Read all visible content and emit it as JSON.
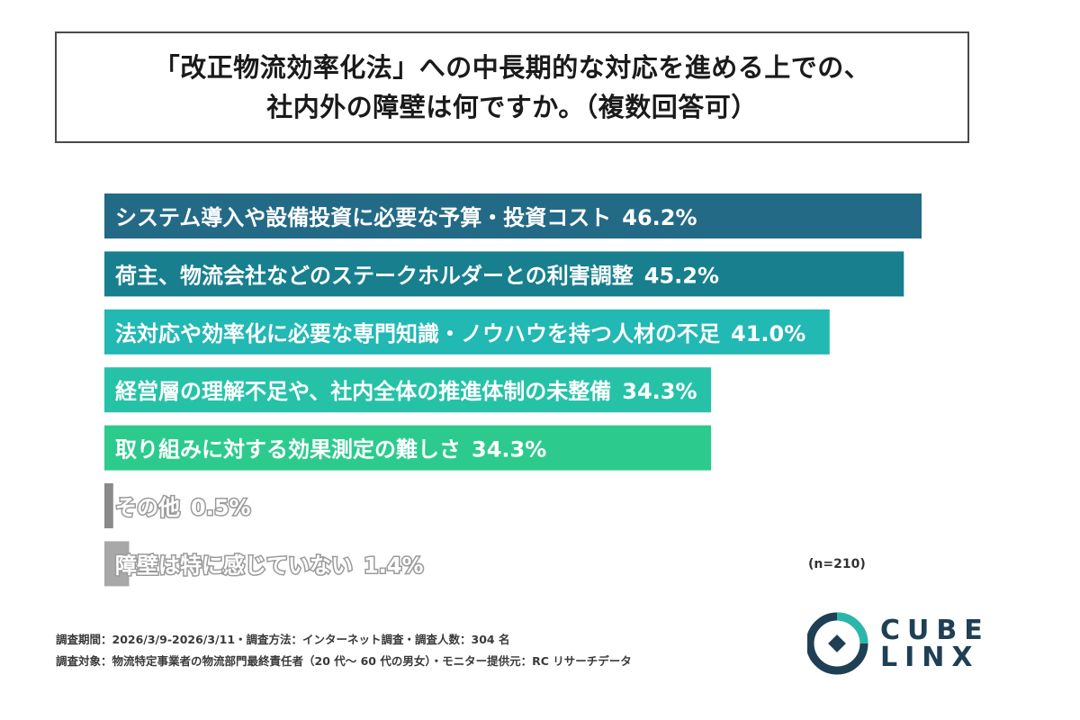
{
  "title": {
    "line1": "「改正物流効率化法」への中長期的な対応を進める上での、",
    "line2": "社内外の障壁は何ですか。（複数回答可）"
  },
  "chart_data": {
    "type": "bar",
    "orientation": "horizontal",
    "categories": [
      "システム導入や設備投資に必要な予算・投資コスト",
      "荷主、物流会社などのステークホルダーとの利害調整",
      "法対応や効率化に必要な専門知識・ノウハウを持つ人材の不足",
      "経営層の理解不足や、社内全体の推進体制の未整備",
      "取り組みに対する効果測定の難しさ",
      "その他",
      "障壁は特に感じていない"
    ],
    "values": [
      46.2,
      45.2,
      41.0,
      34.3,
      34.3,
      0.5,
      1.4
    ],
    "value_labels": [
      "46.2%",
      "45.2%",
      "41.0%",
      "34.3%",
      "34.3%",
      "0.5%",
      "1.4%"
    ],
    "colors": [
      "#236a87",
      "#177f8e",
      "#22b8b4",
      "#26c2a8",
      "#2ccb8d",
      "#8a8a8a",
      "#a8a8a8"
    ],
    "label_styles": [
      "white",
      "white",
      "white",
      "white-outline",
      "white",
      "gray-outline",
      "gray-outline"
    ],
    "xlim": [
      0,
      46.2
    ],
    "grid": false,
    "legend": "none"
  },
  "note": "(n=210)",
  "footer": {
    "line1": "調査期間：2026/3/9-2026/3/11・調査方法：インターネット調査・調査人数：304 名",
    "line2": "調査対象：物流特定事業者の物流部門最終責任者（20 代〜 60 代の男女）・モニター提供元：RC リサーチデータ"
  },
  "logo": {
    "line1": "CUBE",
    "line2": "LINX",
    "color": "#1f3f55",
    "accent": "#2ab7a9"
  }
}
